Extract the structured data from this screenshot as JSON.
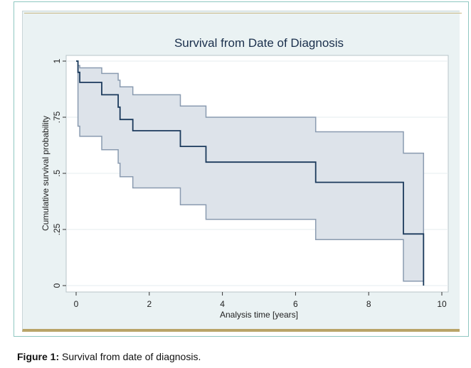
{
  "caption": {
    "label": "Figure 1:",
    "text": "Survival from date of diagnosis."
  },
  "colors": {
    "survival_line": "#1b3a5c",
    "ci_fill": "#dde3ea",
    "ci_edge": "#8a9bb0",
    "panel_bg": "#eaf2f3",
    "grid": "#e6ecef"
  },
  "chart_data": {
    "type": "line",
    "title": "Survival from Date of Diagnosis",
    "xlabel": "Analysis time [years]",
    "ylabel": "Cumulative survival probability",
    "xlim": [
      0,
      10
    ],
    "ylim": [
      0,
      1
    ],
    "xticks": [
      0,
      2,
      4,
      6,
      8,
      10
    ],
    "yticks": [
      0,
      0.25,
      0.5,
      0.75,
      1
    ],
    "xtick_labels": [
      "0",
      "2",
      "4",
      "6",
      "8",
      "10"
    ],
    "ytick_labels": [
      "0",
      ".25",
      ".5",
      ".75",
      "1"
    ],
    "grid": true,
    "series": [
      {
        "style": "step",
        "x": [
          0,
          0.05,
          0.1,
          0.7,
          1.15,
          1.2,
          1.55,
          2.85,
          3.55,
          6.55,
          8.95,
          9.5
        ],
        "y": [
          1.0,
          0.95,
          0.905,
          0.85,
          0.795,
          0.74,
          0.69,
          0.62,
          0.55,
          0.46,
          0.23,
          0.0
        ]
      }
    ],
    "confidence_band": {
      "x": [
        0,
        0.05,
        0.1,
        0.7,
        1.15,
        1.2,
        1.55,
        2.85,
        3.55,
        6.55,
        8.95,
        9.5
      ],
      "upper": [
        1.0,
        0.98,
        0.97,
        0.945,
        0.915,
        0.885,
        0.85,
        0.8,
        0.75,
        0.685,
        0.59,
        0.59
      ],
      "lower": [
        1.0,
        0.71,
        0.665,
        0.605,
        0.545,
        0.485,
        0.435,
        0.36,
        0.295,
        0.205,
        0.02,
        0.02
      ]
    }
  }
}
